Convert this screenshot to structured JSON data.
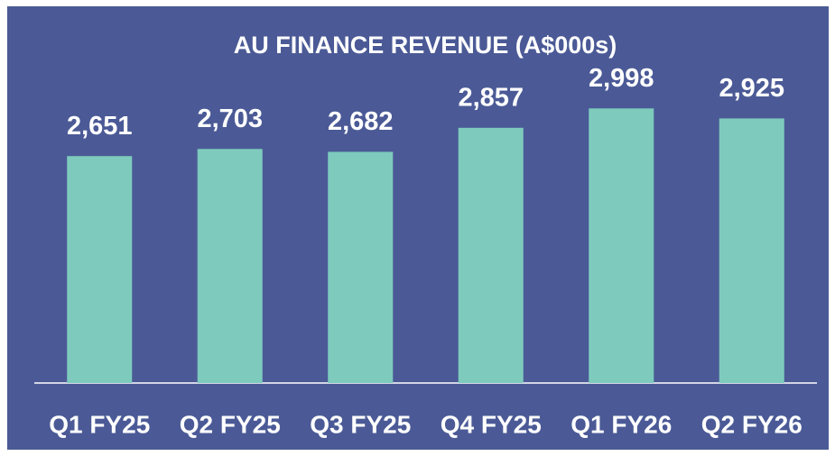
{
  "chart_data": {
    "type": "bar",
    "title": "AU FINANCE REVENUE (A$000s)",
    "categories": [
      "Q1 FY25",
      "Q2 FY25",
      "Q3 FY25",
      "Q4 FY25",
      "Q1 FY26",
      "Q2 FY26"
    ],
    "values": [
      2651,
      2703,
      2682,
      2857,
      2998,
      2925
    ],
    "value_labels": [
      "2,651",
      "2,703",
      "2,682",
      "2,857",
      "2,998",
      "2,925"
    ],
    "color": "#7ecbbd",
    "ylim": [
      1000,
      3000
    ]
  }
}
